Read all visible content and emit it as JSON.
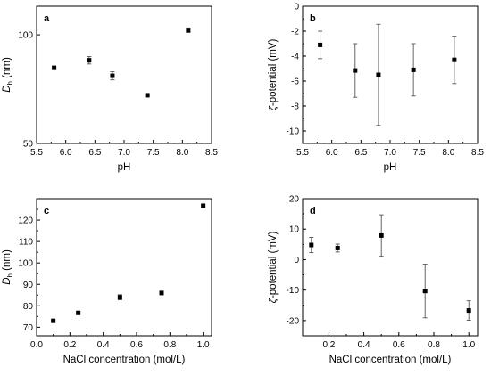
{
  "chart_data": [
    {
      "panel": "a",
      "type": "scatter",
      "xlabel": "pH",
      "ylabel_main": "D",
      "ylabel_sub": "h",
      "ylabel_unit": " (nm)",
      "xlim": [
        5.5,
        8.5
      ],
      "ylim": [
        50,
        120
      ],
      "log_y": true,
      "xticks": [
        "5.5",
        "6.0",
        "6.5",
        "7.0",
        "7.5",
        "8.0",
        "8.5"
      ],
      "xtick_values": [
        5.5,
        6.0,
        6.5,
        7.0,
        7.5,
        8.0,
        8.5
      ],
      "yticks": [
        "50",
        "100"
      ],
      "ytick_values": [
        50,
        100
      ],
      "grid": false,
      "points": [
        {
          "x": 5.8,
          "y": 81,
          "err": 0
        },
        {
          "x": 6.4,
          "y": 85,
          "err": 2
        },
        {
          "x": 6.8,
          "y": 77,
          "err": 2
        },
        {
          "x": 7.4,
          "y": 68,
          "err": 0
        },
        {
          "x": 8.1,
          "y": 103,
          "err": 1.5
        }
      ]
    },
    {
      "panel": "b",
      "type": "scatter",
      "xlabel": "pH",
      "ylabel_main": "ζ",
      "ylabel_sub": "",
      "ylabel_unit": "-potential (mV)",
      "xlim": [
        5.5,
        8.5
      ],
      "ylim": [
        -11,
        0
      ],
      "log_y": false,
      "xticks": [
        "5.5",
        "6.0",
        "6.5",
        "7.0",
        "7.5",
        "8.0",
        "8.5"
      ],
      "xtick_values": [
        5.5,
        6.0,
        6.5,
        7.0,
        7.5,
        8.0,
        8.5
      ],
      "yticks": [
        "0",
        "-2",
        "-4",
        "-6",
        "-8",
        "-10"
      ],
      "ytick_values": [
        0,
        -2,
        -4,
        -6,
        -8,
        -10
      ],
      "grid": false,
      "points": [
        {
          "x": 5.8,
          "y": -3.1,
          "err": 1.1
        },
        {
          "x": 6.4,
          "y": -5.15,
          "err": 2.15
        },
        {
          "x": 6.8,
          "y": -5.5,
          "err": 4.05
        },
        {
          "x": 7.4,
          "y": -5.1,
          "err": 2.1
        },
        {
          "x": 8.1,
          "y": -4.3,
          "err": 1.9
        }
      ]
    },
    {
      "panel": "c",
      "type": "scatter",
      "xlabel": "NaCl concentration (mol/L)",
      "ylabel_main": "D",
      "ylabel_sub": "h",
      "ylabel_unit": " (nm)",
      "xlim": [
        0,
        1.05
      ],
      "ylim": [
        66,
        130
      ],
      "log_y": false,
      "xticks": [
        "0.0",
        "0.2",
        "0.4",
        "0.6",
        "0.8",
        "1.0"
      ],
      "xtick_values": [
        0,
        0.2,
        0.4,
        0.6,
        0.8,
        1.0
      ],
      "yticks": [
        "70",
        "80",
        "90",
        "100",
        "110",
        "120"
      ],
      "ytick_values": [
        70,
        80,
        90,
        100,
        110,
        120
      ],
      "grid": false,
      "points": [
        {
          "x": 0.1,
          "y": 73,
          "err": 0
        },
        {
          "x": 0.25,
          "y": 76.7,
          "err": 0
        },
        {
          "x": 0.5,
          "y": 84,
          "err": 1.2
        },
        {
          "x": 0.75,
          "y": 86,
          "err": 0.8
        },
        {
          "x": 1.0,
          "y": 126.7,
          "err": 0
        }
      ]
    },
    {
      "panel": "d",
      "type": "scatter",
      "xlabel": "NaCl concentration (mol/L)",
      "ylabel_main": "ζ",
      "ylabel_sub": "",
      "ylabel_unit": "-potential (mV)",
      "xlim": [
        0.05,
        1.05
      ],
      "ylim": [
        -25,
        20
      ],
      "log_y": false,
      "xticks": [
        "0.2",
        "0.4",
        "0.6",
        "0.8",
        "1.0"
      ],
      "xtick_values": [
        0.2,
        0.4,
        0.6,
        0.8,
        1.0
      ],
      "yticks": [
        "20",
        "10",
        "0",
        "-10",
        "-20"
      ],
      "ytick_values": [
        20,
        10,
        0,
        -10,
        -20
      ],
      "grid": false,
      "points": [
        {
          "x": 0.1,
          "y": 4.8,
          "err": 2.5
        },
        {
          "x": 0.25,
          "y": 3.8,
          "err": 1.3
        },
        {
          "x": 0.5,
          "y": 7.9,
          "err": 6.8
        },
        {
          "x": 0.75,
          "y": -10.3,
          "err": 8.8
        },
        {
          "x": 1.0,
          "y": -16.7,
          "err": 3.2
        }
      ]
    }
  ]
}
